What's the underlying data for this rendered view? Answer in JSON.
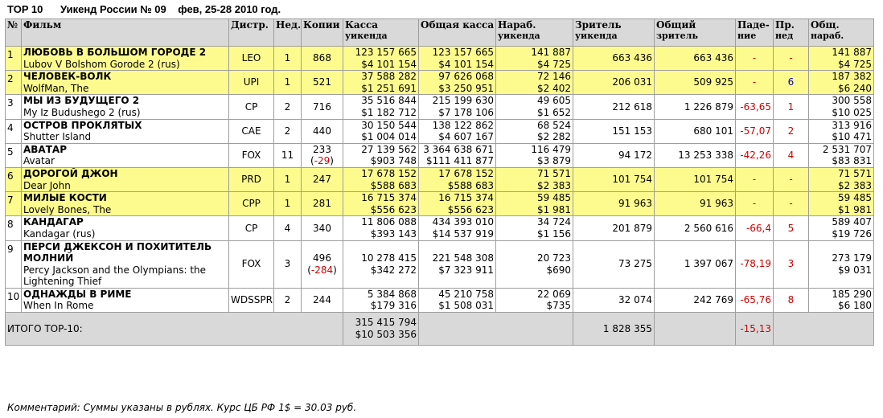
{
  "header": {
    "top": "TOP 10",
    "title": "Уикенд России № 09",
    "dates": "фев, 25-28 2010 год."
  },
  "columns": [
    {
      "l1": "№",
      "l2": ""
    },
    {
      "l1": "Фильм",
      "l2": ""
    },
    {
      "l1": "Дистр.",
      "l2": ""
    },
    {
      "l1": "Нед.",
      "l2": ""
    },
    {
      "l1": "Копии",
      "l2": ""
    },
    {
      "l1": "Касса",
      "l2": "уикенда"
    },
    {
      "l1": "Общая касса",
      "l2": ""
    },
    {
      "l1": "Нараб.",
      "l2": "уикенда"
    },
    {
      "l1": "Зритель",
      "l2": "уикенда"
    },
    {
      "l1": "Общий",
      "l2": "зритель"
    },
    {
      "l1": "Паде-",
      "l2": "ние"
    },
    {
      "l1": "Пр.",
      "l2": "нед"
    },
    {
      "l1": "Общ.",
      "l2": "нараб."
    }
  ],
  "rows": [
    {
      "num": "1",
      "title_ru": "ЛЮБОВЬ В БОЛЬШОМ ГОРОДЕ 2",
      "title_en": "Lubov V Bolshom Gorode 2 (rus)",
      "dist": "LEO",
      "weeks": "1",
      "copies": "868",
      "copies_delta": "",
      "wk_rub": "123 157 665",
      "wk_usd": "$4 101 154",
      "tot_rub": "123 157 665",
      "tot_usd": "$4 101 154",
      "avg_rub": "141 887",
      "avg_usd": "$4 725",
      "wk_viewers": "663 436",
      "tot_viewers": "663 436",
      "fall": "-",
      "prev": "-",
      "cum_rub": "141 887",
      "cum_usd": "$4 725",
      "highlight": true
    },
    {
      "num": "2",
      "title_ru": "ЧЕЛОВЕК-ВОЛК",
      "title_en": "WolfMan, The",
      "dist": "UPI",
      "weeks": "1",
      "copies": "521",
      "copies_delta": "",
      "wk_rub": "37 588 282",
      "wk_usd": "$1 251 691",
      "tot_rub": "97 626 068",
      "tot_usd": "$3 250 951",
      "avg_rub": "72 146",
      "avg_usd": "$2 402",
      "wk_viewers": "206 031",
      "tot_viewers": "509 925",
      "fall": "-",
      "prev": "6",
      "cum_rub": "187 382",
      "cum_usd": "$6 240",
      "highlight": true
    },
    {
      "num": "3",
      "title_ru": "МЫ ИЗ БУДУЩЕГО 2",
      "title_en": "My Iz Budushego 2 (rus)",
      "dist": "CP",
      "weeks": "2",
      "copies": "716",
      "copies_delta": "",
      "wk_rub": "35 516 844",
      "wk_usd": "$1 182 712",
      "tot_rub": "215 199 630",
      "tot_usd": "$7 178 106",
      "avg_rub": "49 605",
      "avg_usd": "$1 652",
      "wk_viewers": "212 618",
      "tot_viewers": "1 226 879",
      "fall": "-63,65",
      "prev": "1",
      "cum_rub": "300 558",
      "cum_usd": "$10 025",
      "highlight": false
    },
    {
      "num": "4",
      "title_ru": "ОСТРОВ ПРОКЛЯТЫХ",
      "title_en": "Shutter Island",
      "dist": "CAE",
      "weeks": "2",
      "copies": "440",
      "copies_delta": "",
      "wk_rub": "30 150 544",
      "wk_usd": "$1 004 014",
      "tot_rub": "138 122 862",
      "tot_usd": "$4 607 167",
      "avg_rub": "68 524",
      "avg_usd": "$2 282",
      "wk_viewers": "151 153",
      "tot_viewers": "680 101",
      "fall": "-57,07",
      "prev": "2",
      "cum_rub": "313 916",
      "cum_usd": "$10 471",
      "highlight": false
    },
    {
      "num": "5",
      "title_ru": "АВАТАР",
      "title_en": "Avatar",
      "dist": "FOX",
      "weeks": "11",
      "copies": "233",
      "copies_delta": "-29",
      "wk_rub": "27 139 562",
      "wk_usd": "$903 748",
      "tot_rub": "3 364 638 671",
      "tot_usd": "$111 411 877",
      "avg_rub": "116 479",
      "avg_usd": "$3 879",
      "wk_viewers": "94 172",
      "tot_viewers": "13 253 338",
      "fall": "-42,26",
      "prev": "4",
      "cum_rub": "2 531 707",
      "cum_usd": "$83 831",
      "highlight": false
    },
    {
      "num": "6",
      "title_ru": "ДОРОГОЙ ДЖОН",
      "title_en": "Dear John",
      "dist": "PRD",
      "weeks": "1",
      "copies": "247",
      "copies_delta": "",
      "wk_rub": "17 678 152",
      "wk_usd": "$588 683",
      "tot_rub": "17 678 152",
      "tot_usd": "$588 683",
      "avg_rub": "71 571",
      "avg_usd": "$2 383",
      "wk_viewers": "101 754",
      "tot_viewers": "101 754",
      "fall": "-",
      "prev": "-",
      "cum_rub": "71 571",
      "cum_usd": "$2 383",
      "highlight": true
    },
    {
      "num": "7",
      "title_ru": "МИЛЫЕ КОСТИ",
      "title_en": "Lovely Bones, The",
      "dist": "CPP",
      "weeks": "1",
      "copies": "281",
      "copies_delta": "",
      "wk_rub": "16 715 374",
      "wk_usd": "$556 623",
      "tot_rub": "16 715 374",
      "tot_usd": "$556 623",
      "avg_rub": "59 485",
      "avg_usd": "$1 981",
      "wk_viewers": "91 963",
      "tot_viewers": "91 963",
      "fall": "-",
      "prev": "-",
      "cum_rub": "59 485",
      "cum_usd": "$1 981",
      "highlight": true
    },
    {
      "num": "8",
      "title_ru": "КАНДАГАР",
      "title_en": "Kandagar (rus)",
      "dist": "CP",
      "weeks": "4",
      "copies": "340",
      "copies_delta": "",
      "wk_rub": "11 806 088",
      "wk_usd": "$393 143",
      "tot_rub": "434 393 010",
      "tot_usd": "$14 537 919",
      "avg_rub": "34 724",
      "avg_usd": "$1 156",
      "wk_viewers": "201 879",
      "tot_viewers": "2 560 616",
      "fall": "-66,4",
      "prev": "5",
      "cum_rub": "589 407",
      "cum_usd": "$19 726",
      "highlight": false
    },
    {
      "num": "9",
      "title_ru": "ПЕРСИ ДЖЕКСОН И ПОХИТИТЕЛЬ МОЛНИЙ",
      "title_en": "Percy Jackson and the Olympians: the Lightening Thief",
      "dist": "FOX",
      "weeks": "3",
      "copies": "496",
      "copies_delta": "-284",
      "wk_rub": "10 278 415",
      "wk_usd": "$342 272",
      "tot_rub": "221 548 308",
      "tot_usd": "$7 323 911",
      "avg_rub": "20 723",
      "avg_usd": "$690",
      "wk_viewers": "73 275",
      "tot_viewers": "1 397 067",
      "fall": "-78,19",
      "prev": "3",
      "cum_rub": "273 179",
      "cum_usd": "$9 031",
      "highlight": false
    },
    {
      "num": "10",
      "title_ru": "ОДНАЖДЫ В РИМЕ",
      "title_en": "When In Rome",
      "dist": "WDSSPR",
      "weeks": "2",
      "copies": "244",
      "copies_delta": "",
      "wk_rub": "5 384 868",
      "wk_usd": "$179 316",
      "tot_rub": "45 210 758",
      "tot_usd": "$1 508 031",
      "avg_rub": "22 069",
      "avg_usd": "$735",
      "wk_viewers": "32 074",
      "tot_viewers": "242 769",
      "fall": "-65,76",
      "prev": "8",
      "cum_rub": "185 290",
      "cum_usd": "$6 180",
      "highlight": false
    }
  ],
  "total": {
    "label": "ИТОГО TOP-10:",
    "wk_rub": "315 415 794",
    "wk_usd": "$10 503 356",
    "wk_viewers": "1 828 355",
    "fall": "-15,13"
  },
  "comment": "Комментарий: Суммы указаны в рублях. Курс ЦБ РФ 1$ = 30.03 руб.",
  "colors": {
    "highlight": "#fefb8e",
    "header": "#d9d9d9",
    "negative": "#d10000",
    "prev_week": "#0000c8"
  }
}
